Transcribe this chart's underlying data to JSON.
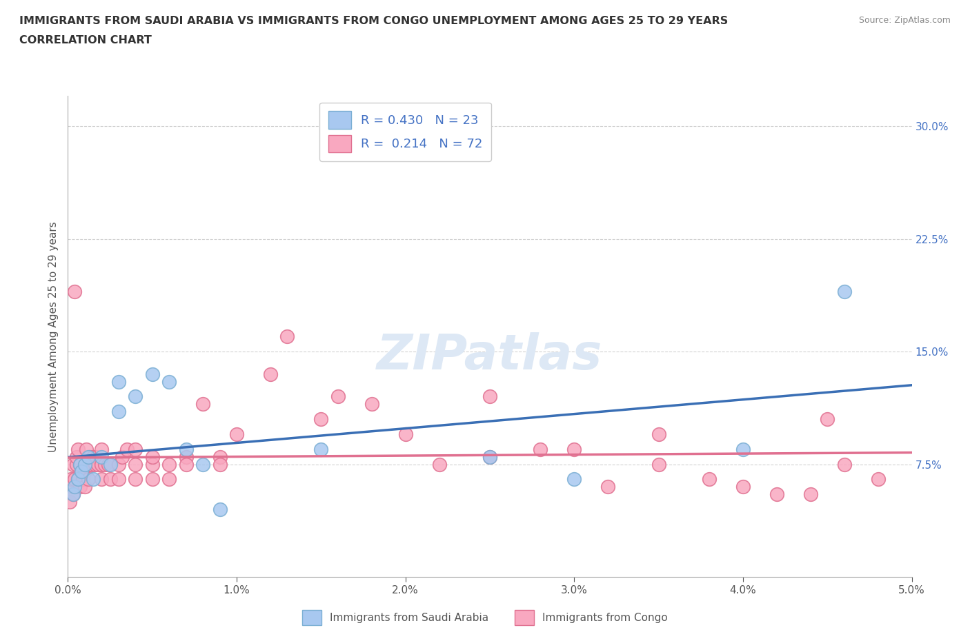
{
  "title_line1": "IMMIGRANTS FROM SAUDI ARABIA VS IMMIGRANTS FROM CONGO UNEMPLOYMENT AMONG AGES 25 TO 29 YEARS",
  "title_line2": "CORRELATION CHART",
  "source_text": "Source: ZipAtlas.com",
  "ylabel": "Unemployment Among Ages 25 to 29 years",
  "xlim": [
    0.0,
    0.05
  ],
  "ylim": [
    0.0,
    0.32
  ],
  "xticks": [
    0.0,
    0.01,
    0.02,
    0.03,
    0.04,
    0.05
  ],
  "xticklabels": [
    "0.0%",
    "1.0%",
    "2.0%",
    "3.0%",
    "4.0%",
    "5.0%"
  ],
  "yticks": [
    0.075,
    0.15,
    0.225,
    0.3
  ],
  "yticklabels": [
    "7.5%",
    "15.0%",
    "22.5%",
    "30.0%"
  ],
  "saudi_color": "#a8c8f0",
  "saudi_edge": "#7bafd4",
  "congo_color": "#f9a8c0",
  "congo_edge": "#e07090",
  "saudi_line_color": "#3a6fb5",
  "congo_line_color": "#e07090",
  "watermark_color": "#dde8f5",
  "watermark": "ZIPatlas",
  "R_saudi": 0.43,
  "N_saudi": 23,
  "R_congo": 0.214,
  "N_congo": 72,
  "legend_label_saudi": "Immigrants from Saudi Arabia",
  "legend_label_congo": "Immigrants from Congo",
  "saudi_x": [
    0.0003,
    0.0004,
    0.0006,
    0.0007,
    0.0008,
    0.001,
    0.0012,
    0.0015,
    0.002,
    0.0025,
    0.003,
    0.003,
    0.004,
    0.005,
    0.006,
    0.007,
    0.008,
    0.009,
    0.015,
    0.025,
    0.03,
    0.04,
    0.046
  ],
  "saudi_y": [
    0.055,
    0.06,
    0.065,
    0.075,
    0.07,
    0.075,
    0.08,
    0.065,
    0.08,
    0.075,
    0.13,
    0.11,
    0.12,
    0.135,
    0.13,
    0.085,
    0.075,
    0.045,
    0.085,
    0.08,
    0.065,
    0.085,
    0.19
  ],
  "congo_x": [
    0.0001,
    0.0002,
    0.0002,
    0.0003,
    0.0003,
    0.0004,
    0.0004,
    0.0005,
    0.0005,
    0.0006,
    0.0006,
    0.0007,
    0.0007,
    0.0008,
    0.0009,
    0.001,
    0.001,
    0.001,
    0.0011,
    0.0012,
    0.0012,
    0.0013,
    0.0014,
    0.0015,
    0.0016,
    0.0017,
    0.0018,
    0.002,
    0.002,
    0.002,
    0.0022,
    0.0024,
    0.0025,
    0.003,
    0.003,
    0.0032,
    0.0035,
    0.004,
    0.004,
    0.004,
    0.005,
    0.005,
    0.005,
    0.006,
    0.006,
    0.007,
    0.007,
    0.008,
    0.009,
    0.009,
    0.01,
    0.012,
    0.013,
    0.015,
    0.016,
    0.018,
    0.02,
    0.022,
    0.025,
    0.025,
    0.028,
    0.03,
    0.032,
    0.035,
    0.035,
    0.038,
    0.04,
    0.042,
    0.044,
    0.045,
    0.046,
    0.048
  ],
  "congo_y": [
    0.05,
    0.06,
    0.065,
    0.075,
    0.055,
    0.19,
    0.065,
    0.075,
    0.08,
    0.085,
    0.065,
    0.075,
    0.06,
    0.07,
    0.065,
    0.07,
    0.075,
    0.06,
    0.085,
    0.075,
    0.065,
    0.08,
    0.075,
    0.08,
    0.075,
    0.08,
    0.075,
    0.075,
    0.065,
    0.085,
    0.075,
    0.075,
    0.065,
    0.075,
    0.065,
    0.08,
    0.085,
    0.075,
    0.065,
    0.085,
    0.075,
    0.065,
    0.08,
    0.075,
    0.065,
    0.08,
    0.075,
    0.115,
    0.08,
    0.075,
    0.095,
    0.135,
    0.16,
    0.105,
    0.12,
    0.115,
    0.095,
    0.075,
    0.08,
    0.12,
    0.085,
    0.085,
    0.06,
    0.095,
    0.075,
    0.065,
    0.06,
    0.055,
    0.055,
    0.105,
    0.075,
    0.065
  ]
}
